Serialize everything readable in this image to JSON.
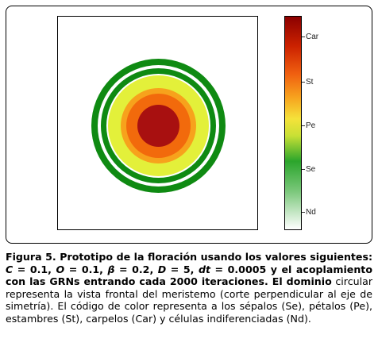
{
  "figure": {
    "rings": [
      {
        "name": "sepal-outer-ring",
        "color": "#0f8a12"
      },
      {
        "name": "gap-ring",
        "color": "#ffffff"
      },
      {
        "name": "sepal-inner-ring",
        "color": "#0f8a12"
      },
      {
        "name": "gap-ring-2",
        "color": "#ffffff"
      },
      {
        "name": "petal-ring",
        "color": "#e3f03a"
      },
      {
        "name": "stamen-ring",
        "color": "#f7a21c"
      },
      {
        "name": "stamen-inner-ring",
        "color": "#f26a0c"
      },
      {
        "name": "carpel-core",
        "color": "#a81010"
      }
    ],
    "colorbar": {
      "labels": [
        "Car",
        "St",
        "Pe",
        "Se",
        "Nd"
      ],
      "gradient": [
        "#8b0000",
        "#cc2200",
        "#f06010",
        "#f7a31e",
        "#f5e23a",
        "#c8e035",
        "#2ba52c",
        "#7ac77a",
        "#ffffff"
      ]
    }
  },
  "caption": {
    "lead": "Figura 5. Prototipo de la floración usando los valores siguientes:",
    "line2_C": "C",
    "line2_a": " = 0.1, ",
    "line2_O": "O",
    "line2_b": " = 0.1, ",
    "line2_beta": "β",
    "line2_c": " = 0.2, ",
    "line2_D": "D",
    "line2_d": " = 5, ",
    "line2_dt": "dt",
    "line2_e": " = 0.0005 y el acoplamiento con las GRNs entrando cada 2000 iteraciones. El dominio",
    "rest": "circular representa la vista frontal del meristemo (corte perpendicular al eje de simetría). El código de color representa a los sépalos (Se), pétalos (Pe), estambres (St), carpelos (Car) y células indiferenciadas (Nd)."
  }
}
